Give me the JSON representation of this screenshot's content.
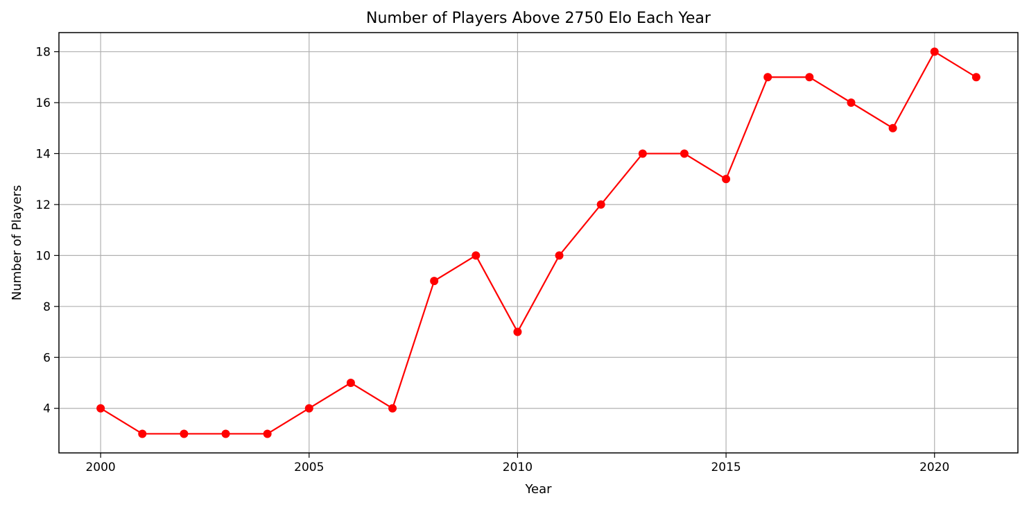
{
  "chart_data": {
    "type": "line",
    "title": "Number of Players Above 2750 Elo Each Year",
    "xlabel": "Year",
    "ylabel": "Number of Players",
    "x": [
      2000,
      2001,
      2002,
      2003,
      2004,
      2005,
      2006,
      2007,
      2008,
      2009,
      2010,
      2011,
      2012,
      2013,
      2014,
      2015,
      2016,
      2017,
      2018,
      2019,
      2020,
      2021
    ],
    "series": [
      {
        "values": [
          4,
          3,
          3,
          3,
          3,
          4,
          5,
          4,
          9,
          10,
          7,
          10,
          12,
          14,
          14,
          13,
          17,
          17,
          16,
          15,
          18,
          17
        ],
        "color": "#ff0000",
        "marker": "circle"
      }
    ],
    "xlim": [
      1999,
      2022
    ],
    "ylim": [
      2.25,
      18.75
    ],
    "xticks": [
      2000,
      2005,
      2010,
      2015,
      2020
    ],
    "yticks": [
      4,
      6,
      8,
      10,
      12,
      14,
      16,
      18
    ],
    "grid": true,
    "legend": "none"
  }
}
